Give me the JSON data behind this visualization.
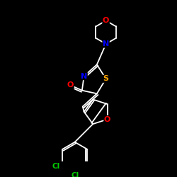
{
  "bg_color": "#000000",
  "bond_color": "#ffffff",
  "atom_colors": {
    "O": "#ff0000",
    "N": "#0000ff",
    "S": "#ffa500",
    "Cl": "#00cc00",
    "C": "#ffffff"
  },
  "font_size_atom": 8,
  "figsize": [
    2.5,
    2.5
  ],
  "dpi": 100
}
